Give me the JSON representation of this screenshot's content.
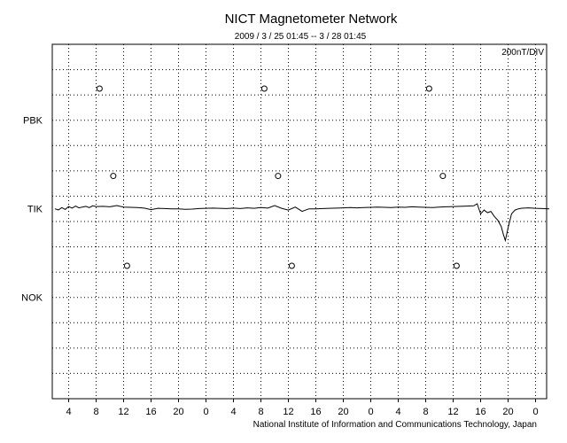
{
  "chart_data": {
    "type": "line",
    "title": "NICT Magnetometer Network",
    "subtitle": "2009 / 3 / 25   01:45 --  3 / 28   01:45",
    "scale_label": "200nT/DIV",
    "footer": "National Institute of Information and Communications Technology, Japan",
    "x_tick_labels": [
      "4",
      "8",
      "12",
      "16",
      "20",
      "0",
      "4",
      "8",
      "12",
      "16",
      "20",
      "0",
      "4",
      "8",
      "12",
      "16",
      "20",
      "0"
    ],
    "xlim_hours": [
      0,
      72
    ],
    "grid": true,
    "stations": [
      {
        "name": "PBK",
        "baseline_div": 3
      },
      {
        "name": "TIK",
        "baseline_div": 6.5
      },
      {
        "name": "NOK",
        "baseline_div": 10
      }
    ],
    "series": [
      {
        "name": "TIK",
        "x_hours": [
          0,
          0.5,
          1,
          1.5,
          2,
          2.5,
          3,
          3.5,
          4,
          4.5,
          5,
          5.5,
          6,
          7,
          8,
          9,
          10,
          11,
          12,
          13,
          14,
          15,
          16,
          17,
          18,
          19,
          20,
          21,
          22,
          23,
          24,
          25,
          26,
          27,
          28,
          29,
          30,
          31,
          32,
          33,
          34,
          35,
          36,
          37,
          38,
          39,
          40,
          41,
          42,
          43,
          44,
          45,
          46,
          47,
          48,
          49,
          50,
          51,
          52,
          53,
          54,
          55,
          56,
          57,
          58,
          59,
          60,
          61,
          61.5,
          62,
          62.5,
          63,
          63.5,
          64,
          64.5,
          65,
          65.3,
          65.6,
          66,
          66.5,
          67,
          67.5,
          68,
          69,
          70,
          71,
          72
        ],
        "values": [
          0,
          -8,
          10,
          -5,
          18,
          6,
          22,
          8,
          14,
          20,
          10,
          24,
          18,
          20,
          16,
          26,
          14,
          12,
          10,
          6,
          -6,
          4,
          2,
          0,
          0,
          -4,
          -2,
          2,
          4,
          6,
          4,
          2,
          6,
          2,
          8,
          4,
          10,
          6,
          26,
          4,
          -10,
          14,
          -20,
          0,
          0,
          2,
          4,
          6,
          8,
          10,
          8,
          10,
          12,
          14,
          12,
          10,
          14,
          12,
          16,
          14,
          12,
          10,
          14,
          16,
          18,
          20,
          22,
          24,
          40,
          -40,
          -10,
          -30,
          -20,
          -60,
          -90,
          -140,
          -200,
          -250,
          -150,
          -40,
          -10,
          0,
          5,
          8,
          4,
          2,
          0
        ]
      }
    ],
    "markers": [
      {
        "station": "PBK",
        "hours": [
          6.5,
          30.5,
          54.5
        ]
      },
      {
        "station": "TIK",
        "hours": [
          8.5,
          32.5,
          56.5
        ]
      },
      {
        "station": "NOK",
        "hours": [
          10.5,
          34.5,
          58.5
        ]
      }
    ]
  }
}
